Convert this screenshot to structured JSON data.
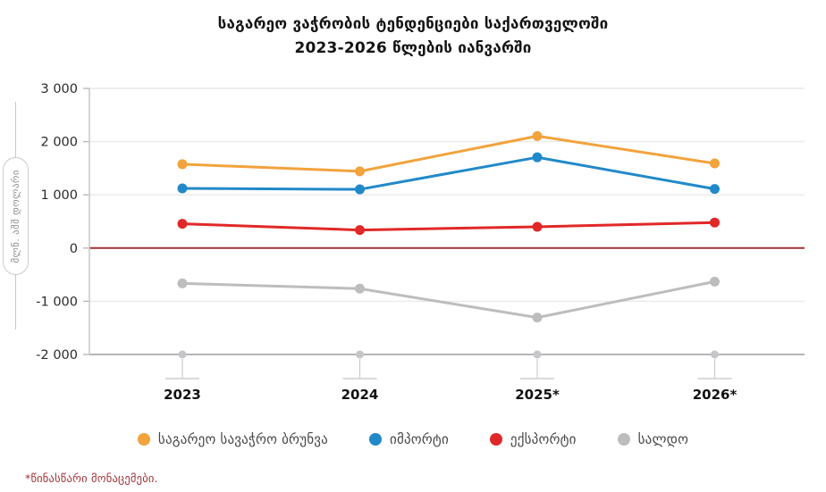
{
  "title": {
    "line1": "საგარეო ვაჭრობის ტენდენციები საქართველოში",
    "line2": "2023-2026 წლების იანვარში"
  },
  "footnote": {
    "text": "*წინასწარი მონაცემები."
  },
  "chart_data": {
    "type": "line",
    "title": "საგარეო ვაჭრობის ტენდენციები საქართველოში 2023-2026 წლების იანვარში",
    "xlabel": "",
    "ylabel": "მლნ. აშშ დოლარი",
    "categories": [
      "2023",
      "2024",
      "2025*",
      "2026*"
    ],
    "ylim": [
      -2000,
      3000
    ],
    "grid": true,
    "legend_position": "bottom",
    "zero_line_color": "#a13338",
    "yticks": [
      {
        "value": 3000,
        "label": "3 000"
      },
      {
        "value": 2000,
        "label": "2 000"
      },
      {
        "value": 1000,
        "label": "1 000"
      },
      {
        "value": 0,
        "label": "0"
      },
      {
        "value": -1000,
        "label": "-1 000"
      },
      {
        "value": -2000,
        "label": "-2 000"
      }
    ],
    "series": [
      {
        "name": "საგარეო სავაჭრო ბრუნვა",
        "color": "#f2a33c",
        "values": [
          1575,
          1442,
          2105,
          1590
        ]
      },
      {
        "name": "იმპორტი",
        "color": "#2189c9",
        "values": [
          1120,
          1103,
          1705,
          1110
        ]
      },
      {
        "name": "ექსპორტი",
        "color": "#e12828",
        "values": [
          456,
          339,
          400,
          480
        ]
      },
      {
        "name": "სალდო",
        "color": "#bdbdbd",
        "values": [
          -664,
          -763,
          -1306,
          -630
        ]
      }
    ]
  }
}
